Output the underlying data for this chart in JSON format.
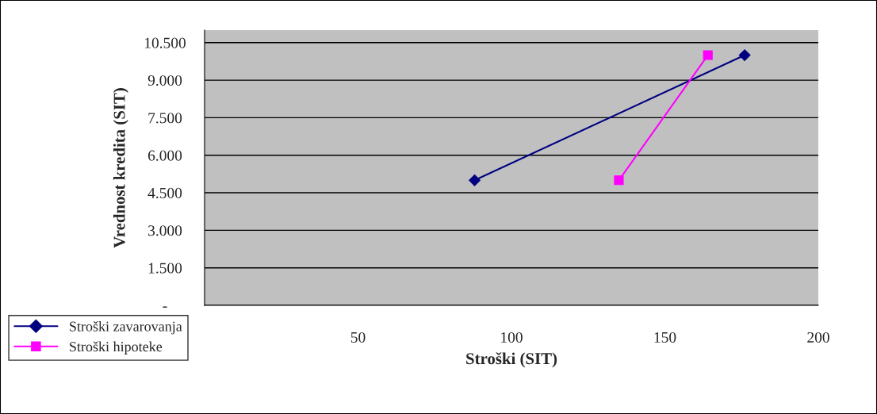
{
  "chart_data": {
    "type": "line",
    "xlabel": "Stroški (SIT)",
    "ylabel": "Vrednost kredita (SIT)",
    "xlim": [
      0,
      200
    ],
    "xticks": [
      {
        "value": 0,
        "label": null
      },
      50,
      100,
      150,
      200
    ],
    "ylim": [
      0,
      11000
    ],
    "yticks": [
      {
        "value": 0,
        "label": "-"
      },
      {
        "value": 1500,
        "label": "1.500"
      },
      {
        "value": 3000,
        "label": "3.000"
      },
      {
        "value": 4500,
        "label": "4.500"
      },
      {
        "value": 6000,
        "label": "6.000"
      },
      {
        "value": 7500,
        "label": "7.500"
      },
      {
        "value": 9000,
        "label": "9.000"
      },
      {
        "value": 10500,
        "label": "10.500"
      }
    ],
    "grid": "y",
    "legend": "bottom left",
    "series": [
      {
        "name": "Stroški zavarovanja",
        "color": "#000080",
        "marker": "diamond",
        "x": [
          88,
          176
        ],
        "values": [
          5000,
          10000
        ]
      },
      {
        "name": "Stroški hipoteke",
        "color": "#ff00ff",
        "marker": "square",
        "x": [
          135,
          164
        ],
        "values": [
          5000,
          10000
        ]
      }
    ]
  }
}
